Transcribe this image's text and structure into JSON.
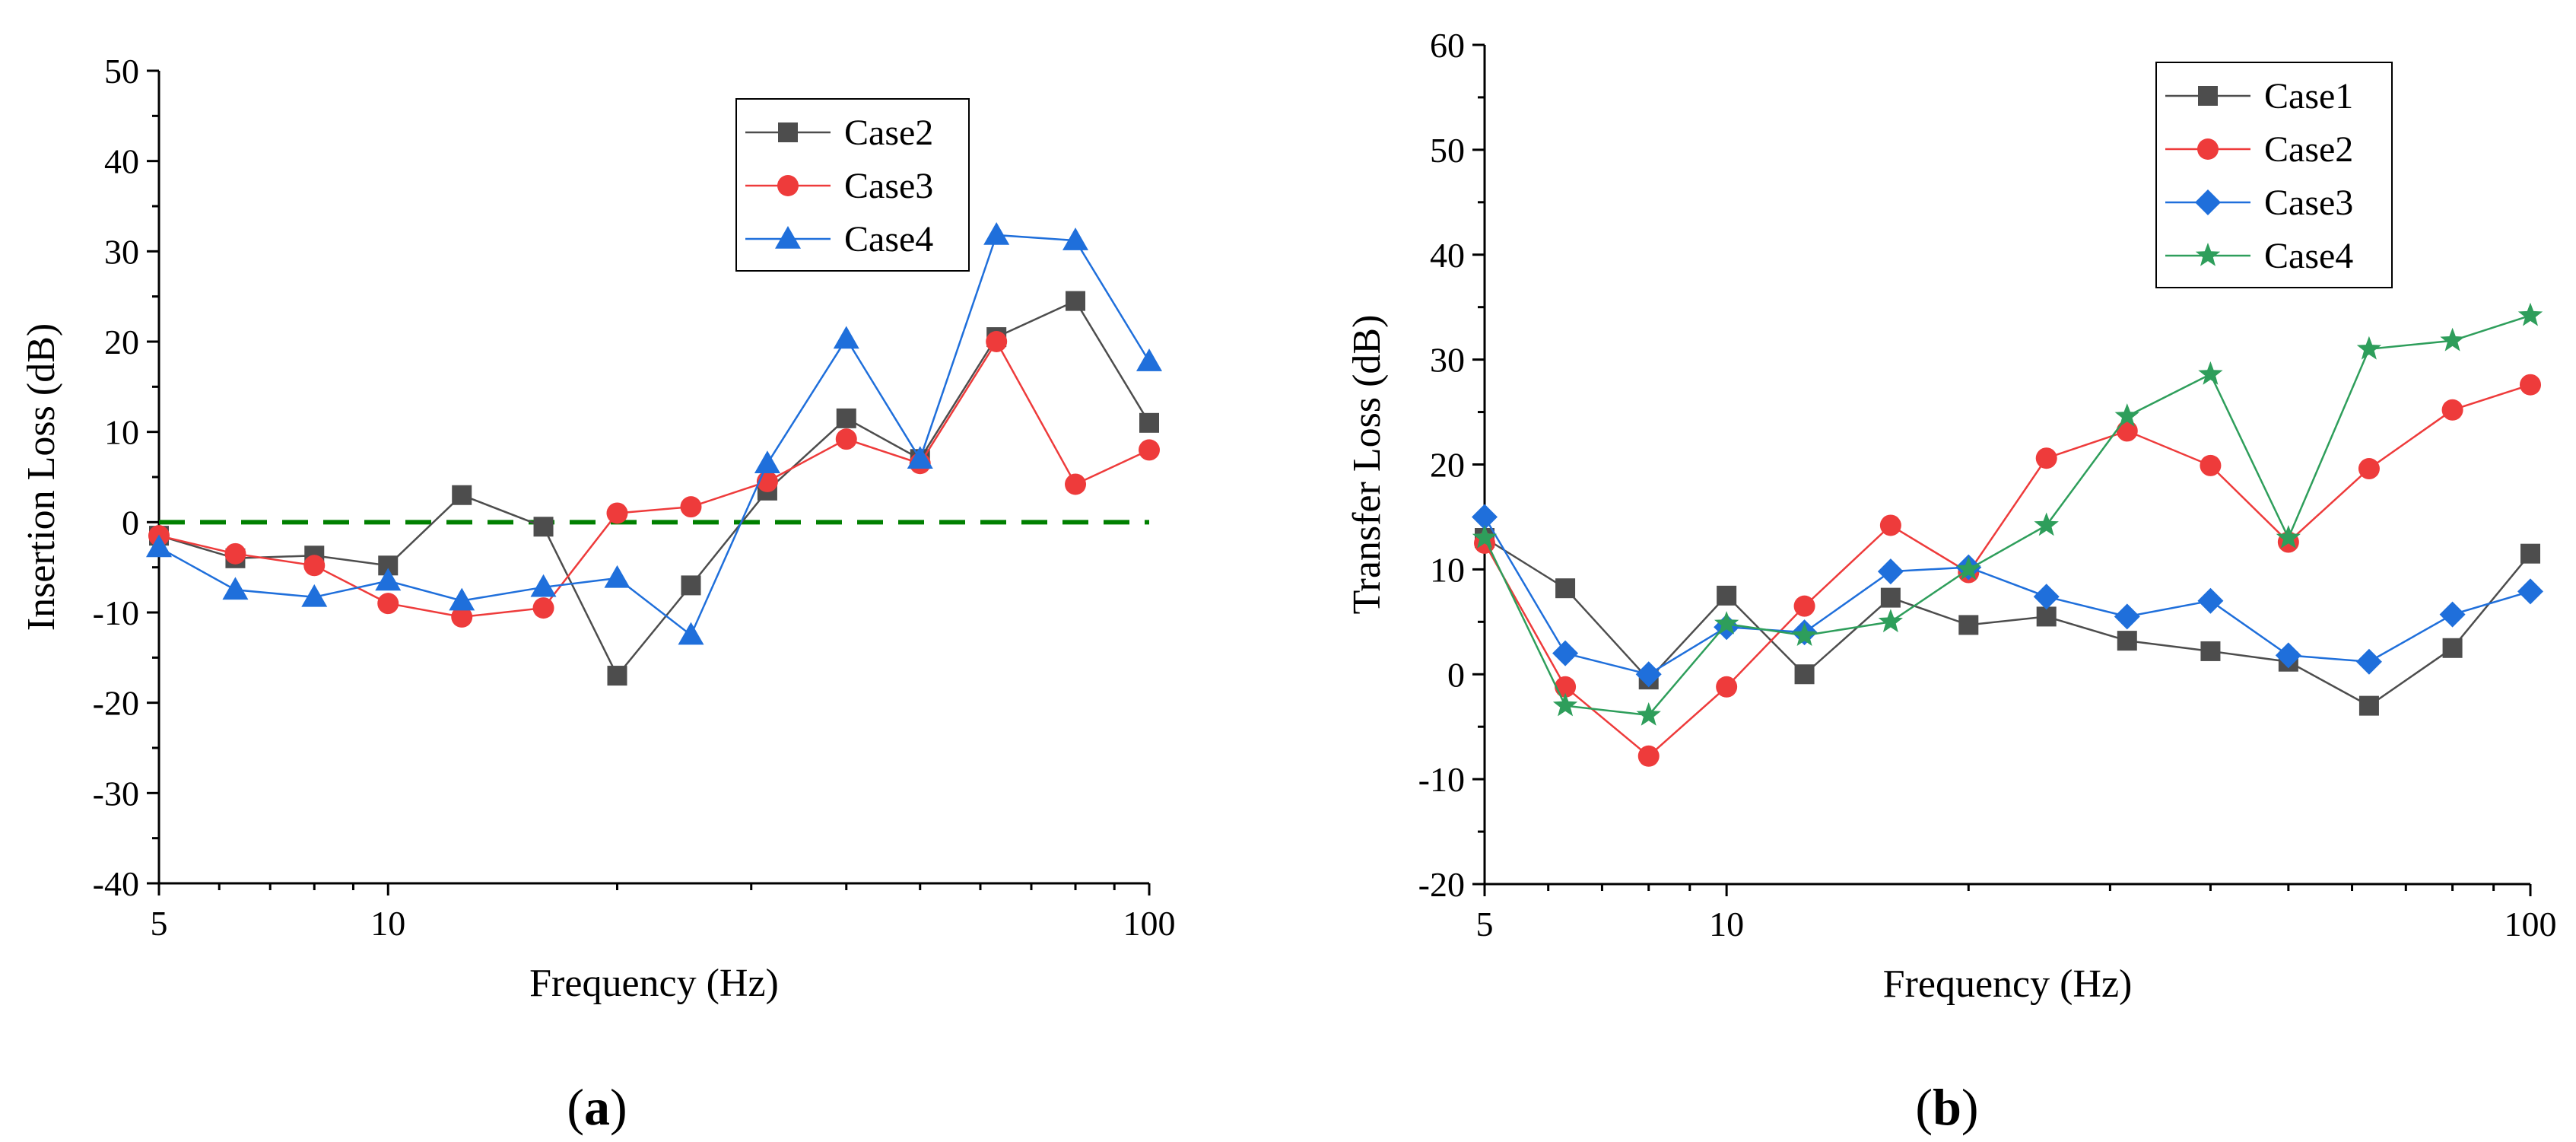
{
  "figure": {
    "panel_labels": [
      {
        "open": "(",
        "letter": "a",
        "close": ")"
      },
      {
        "open": "(",
        "letter": "b",
        "close": ")"
      }
    ]
  },
  "chart_data": [
    {
      "type": "line",
      "panel": "a",
      "title": "",
      "xlabel": "Frequency (Hz)",
      "ylabel": "Insertion Loss (dB)",
      "xscale": "log",
      "xlim": [
        5,
        100
      ],
      "ylim": [
        -40,
        50
      ],
      "xticks": [
        5,
        10,
        100
      ],
      "xtick_labels": [
        "5",
        "10",
        "100"
      ],
      "yticks": [
        -40,
        -30,
        -20,
        -10,
        0,
        10,
        20,
        30,
        40,
        50
      ],
      "ytick_labels": [
        "-40",
        "-30",
        "-20",
        "-10",
        "0",
        "10",
        "20",
        "30",
        "40",
        "50"
      ],
      "grid": false,
      "legend_position": "top-right",
      "reference_line": {
        "y": 0,
        "style": "dashed",
        "color": "#008000"
      },
      "x": [
        5,
        6.3,
        8,
        10,
        12.5,
        16,
        20,
        25,
        31.5,
        40,
        50,
        63,
        80,
        100
      ],
      "series": [
        {
          "name": "Case2",
          "color": "#4d4d4d",
          "marker": "square",
          "values": [
            -1.5,
            -4,
            -3.7,
            -4.8,
            3,
            -0.5,
            -17,
            -7,
            3.5,
            11.5,
            7,
            20.5,
            24.5,
            11
          ]
        },
        {
          "name": "Case3",
          "color": "#ee3b3b",
          "marker": "circle",
          "values": [
            -1.5,
            -3.5,
            -4.8,
            -9,
            -10.5,
            -9.5,
            1,
            1.7,
            4.5,
            9.2,
            6.5,
            20,
            4.2,
            8
          ]
        },
        {
          "name": "Case4",
          "color": "#1f6fdb",
          "marker": "triangle",
          "values": [
            -2.8,
            -7.5,
            -8.3,
            -6.5,
            -8.7,
            -7.2,
            -6.2,
            -12.5,
            6.5,
            20.3,
            7,
            31.8,
            31.2,
            17.8
          ]
        }
      ]
    },
    {
      "type": "line",
      "panel": "b",
      "title": "",
      "xlabel": "Frequency (Hz)",
      "ylabel": "Transfer Loss (dB)",
      "xscale": "log",
      "xlim": [
        5,
        100
      ],
      "ylim": [
        -20,
        60
      ],
      "xticks": [
        5,
        10,
        100
      ],
      "xtick_labels": [
        "5",
        "10",
        "100"
      ],
      "yticks": [
        -20,
        -10,
        0,
        10,
        20,
        30,
        40,
        50,
        60
      ],
      "ytick_labels": [
        "-20",
        "-10",
        "0",
        "10",
        "20",
        "30",
        "40",
        "50",
        "60"
      ],
      "grid": false,
      "legend_position": "top-right",
      "x": [
        5,
        6.3,
        8,
        10,
        12.5,
        16,
        20,
        25,
        31.5,
        40,
        50,
        63,
        80,
        100
      ],
      "series": [
        {
          "name": "Case1",
          "color": "#4d4d4d",
          "marker": "square",
          "values": [
            13,
            8.2,
            -0.5,
            7.5,
            0,
            7.3,
            4.7,
            5.5,
            3.2,
            2.2,
            1.2,
            -3,
            2.5,
            11.5
          ]
        },
        {
          "name": "Case2",
          "color": "#ee3b3b",
          "marker": "circle",
          "values": [
            12.5,
            -1.2,
            -7.8,
            -1.2,
            6.5,
            14.2,
            9.7,
            20.6,
            23.2,
            19.9,
            12.6,
            19.6,
            25.2,
            27.6
          ]
        },
        {
          "name": "Case3",
          "color": "#1f6fdb",
          "marker": "diamond",
          "values": [
            15,
            2,
            0,
            4.5,
            4,
            9.8,
            10.2,
            7.4,
            5.5,
            7,
            1.8,
            1.2,
            5.7,
            7.9
          ]
        },
        {
          "name": "Case4",
          "color": "#2e9e5b",
          "marker": "star",
          "values": [
            13,
            -3,
            -3.9,
            4.8,
            3.7,
            5,
            10,
            14.2,
            24.6,
            28.6,
            13,
            31,
            31.8,
            34.2
          ]
        }
      ]
    }
  ]
}
